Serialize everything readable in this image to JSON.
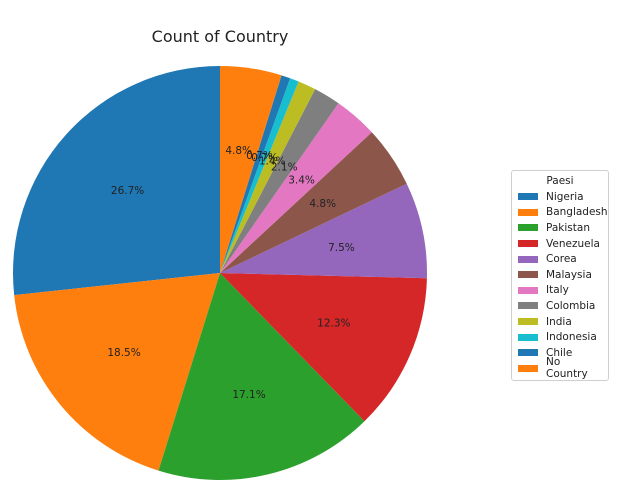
{
  "chart_data": {
    "type": "pie",
    "title": "Count of Country",
    "legend_title": "Paesi",
    "legend_position": "right",
    "start_angle_deg": 90,
    "direction": "counterclockwise",
    "categories": [
      "Nigeria",
      "Bangladesh",
      "Pakistan",
      "Venezuela",
      "Corea",
      "Malaysia",
      "Italy",
      "Colombia",
      "India",
      "Indonesia",
      "Chile",
      "No Country"
    ],
    "values": [
      26.7,
      18.5,
      17.1,
      12.3,
      7.5,
      4.8,
      3.4,
      2.1,
      1.4,
      0.7,
      0.7,
      4.8
    ],
    "labels": [
      "26.7%",
      "18.5%",
      "17.1%",
      "12.3%",
      "7.5%",
      "4.8%",
      "3.4%",
      "2.1%",
      "1.4%",
      "0.7%",
      "0.7%",
      "4.8%"
    ],
    "colors": [
      "#1f77b4",
      "#ff7f0e",
      "#2ca02c",
      "#d62728",
      "#9467bd",
      "#8c564b",
      "#e377c2",
      "#7f7f7f",
      "#bcbd22",
      "#17becf",
      "#1f77b4",
      "#ff7f0e"
    ]
  }
}
